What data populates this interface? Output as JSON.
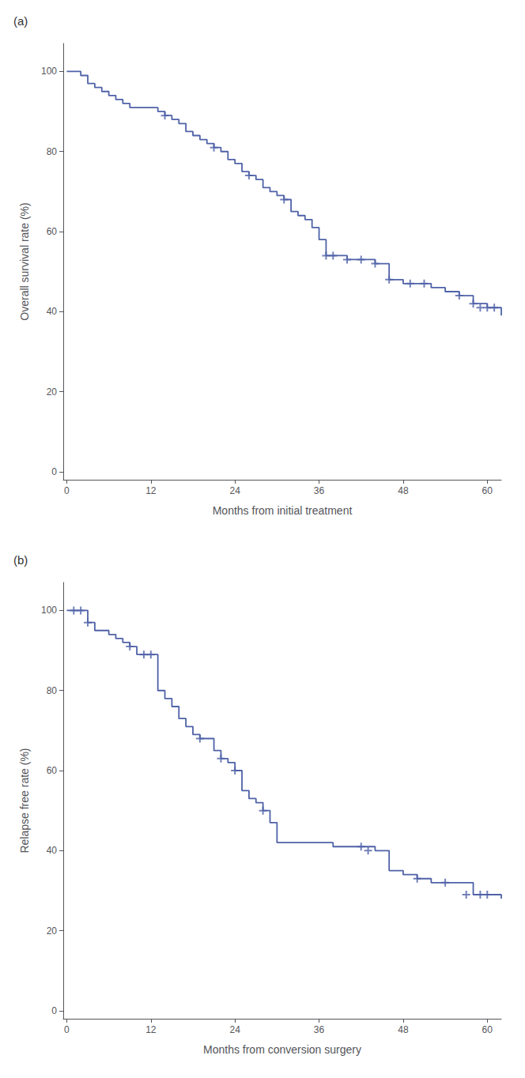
{
  "chart_data": [
    {
      "type": "line",
      "title": "(a)",
      "xlabel": "Months from initial treatment",
      "ylabel": "Overall survival rate (%)",
      "xlim": [
        -0.5,
        62
      ],
      "ylim": [
        -2,
        107
      ],
      "xticks": [
        0,
        12,
        24,
        36,
        48,
        60
      ],
      "yticks": [
        0,
        20,
        40,
        60,
        80,
        100
      ],
      "grid": false,
      "series": [
        {
          "type": "step",
          "color": "#4f62a8",
          "x": [
            0,
            2,
            3,
            4,
            5,
            6,
            7,
            8,
            9,
            10,
            11,
            12,
            13,
            14,
            15,
            16,
            17,
            18,
            19,
            20,
            21,
            22,
            23,
            24,
            25,
            26,
            27,
            28,
            29,
            30,
            31,
            32,
            33,
            34,
            35,
            36,
            37,
            38,
            40,
            42,
            44,
            46,
            48,
            50,
            52,
            54,
            56,
            58,
            60,
            62
          ],
          "values": [
            100,
            99,
            97,
            96,
            95,
            94,
            93,
            92,
            91,
            91,
            91,
            91,
            90,
            89,
            88,
            87,
            85,
            84,
            83,
            82,
            81,
            80,
            78,
            77,
            75,
            74,
            73,
            71,
            70,
            69,
            68,
            65,
            64,
            63,
            61,
            58,
            54,
            54,
            53,
            53,
            52,
            48,
            47,
            47,
            46,
            45,
            44,
            42,
            41,
            39
          ]
        },
        {
          "type": "scatter",
          "marker": "plus",
          "color": "#4f62a8",
          "x": [
            14,
            21,
            26,
            31,
            37,
            38,
            40,
            42,
            44,
            46,
            49,
            51,
            56,
            58,
            59,
            60,
            61
          ],
          "values": [
            89,
            81,
            74,
            68,
            54,
            54,
            53,
            53,
            52,
            48,
            47,
            47,
            44,
            42,
            41,
            41,
            41
          ]
        }
      ]
    },
    {
      "type": "line",
      "title": "(b)",
      "xlabel": "Months from conversion surgery",
      "ylabel": "Relapse free rate (%)",
      "xlim": [
        -0.5,
        62
      ],
      "ylim": [
        -2,
        107
      ],
      "xticks": [
        0,
        12,
        24,
        36,
        48,
        60
      ],
      "yticks": [
        0,
        20,
        40,
        60,
        80,
        100
      ],
      "grid": false,
      "series": [
        {
          "type": "step",
          "color": "#4f62a8",
          "x": [
            0,
            1,
            2,
            3,
            4,
            5,
            6,
            7,
            8,
            9,
            10,
            11,
            12,
            13,
            14,
            15,
            16,
            17,
            18,
            19,
            20,
            21,
            22,
            23,
            24,
            25,
            26,
            27,
            28,
            29,
            30,
            32,
            34,
            36,
            38,
            40,
            42,
            44,
            46,
            48,
            50,
            52,
            54,
            56,
            58,
            60,
            62
          ],
          "values": [
            100,
            100,
            100,
            97,
            95,
            95,
            94,
            93,
            92,
            91,
            89,
            89,
            89,
            80,
            78,
            76,
            73,
            71,
            69,
            68,
            68,
            65,
            63,
            62,
            60,
            55,
            53,
            52,
            50,
            47,
            42,
            42,
            42,
            42,
            41,
            41,
            41,
            40,
            35,
            34,
            33,
            32,
            32,
            32,
            29,
            29,
            28
          ]
        },
        {
          "type": "scatter",
          "marker": "plus",
          "color": "#4f62a8",
          "x": [
            1,
            2,
            3,
            9,
            11,
            12,
            19,
            22,
            24,
            28,
            42,
            43,
            50,
            54,
            57,
            59,
            60
          ],
          "values": [
            100,
            100,
            97,
            91,
            89,
            89,
            68,
            63,
            60,
            50,
            41,
            40,
            33,
            32,
            29,
            29,
            29
          ]
        }
      ]
    }
  ]
}
